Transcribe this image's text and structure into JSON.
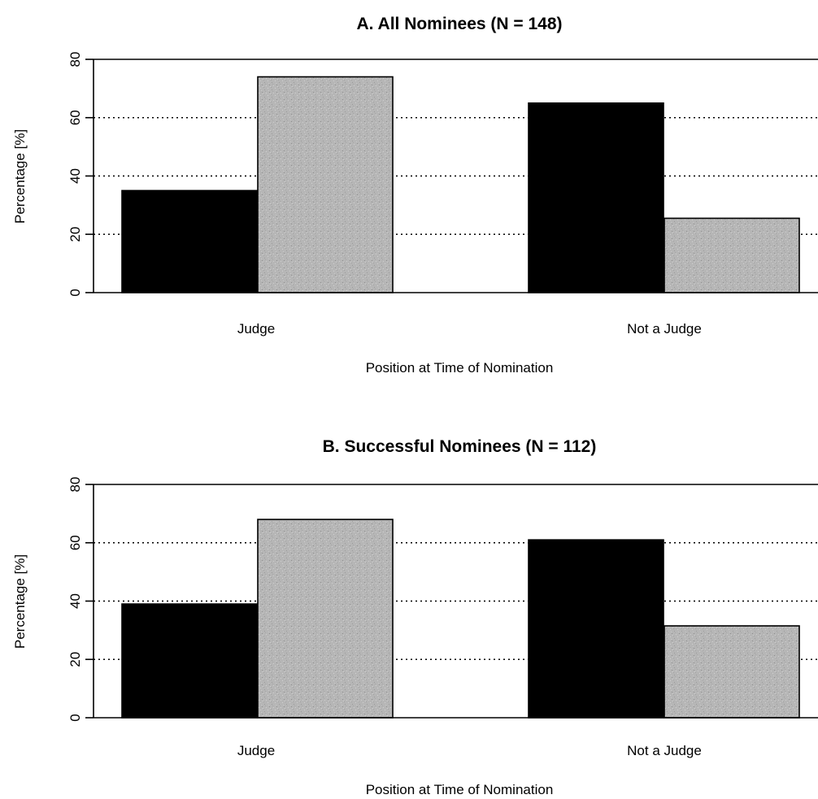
{
  "chart_data": [
    {
      "type": "bar",
      "title": "A. All Nominees (N = 148)",
      "xlabel": "Position at Time of Nomination",
      "ylabel": "Percentage [%]",
      "categories": [
        "Judge",
        "Not a Judge"
      ],
      "series": [
        {
          "values": [
            35,
            65
          ],
          "color": "#000000"
        },
        {
          "values": [
            74,
            25.5
          ],
          "color": "#b4b4b4"
        }
      ],
      "ylim": [
        0,
        80
      ],
      "yticks": [
        "0",
        "20",
        "40",
        "60",
        "80"
      ],
      "grid": "horizontal dotted",
      "legend": "none"
    },
    {
      "type": "bar",
      "title": "B. Successful Nominees (N = 112)",
      "xlabel": "Position at Time of Nomination",
      "ylabel": "Percentage [%]",
      "categories": [
        "Judge",
        "Not a Judge"
      ],
      "series": [
        {
          "values": [
            39,
            61
          ],
          "color": "#000000"
        },
        {
          "values": [
            68,
            31.5
          ],
          "color": "#b4b4b4"
        }
      ],
      "ylim": [
        0,
        80
      ],
      "yticks": [
        "0",
        "20",
        "40",
        "60",
        "80"
      ],
      "grid": "horizontal dotted",
      "legend": "none"
    }
  ]
}
